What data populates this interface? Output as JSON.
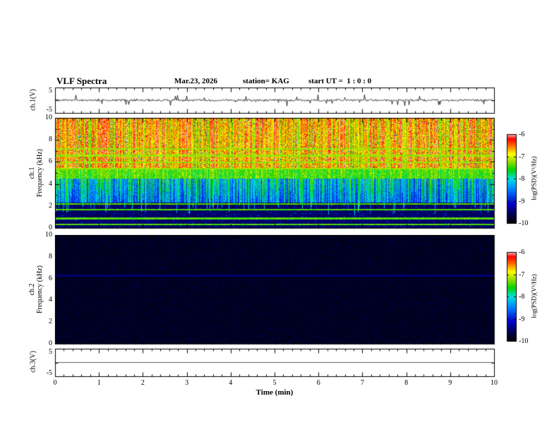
{
  "header": {
    "title": "VLF Spectra",
    "date": "Mar.23, 2026",
    "station": "station= KAG",
    "start_ut": "start UT =  1 : 0 : 0"
  },
  "xaxis": {
    "label": "Time (min)",
    "ticks": [
      0,
      1,
      2,
      3,
      4,
      5,
      6,
      7,
      8,
      9,
      10
    ],
    "range_min": [
      0,
      10
    ],
    "minor_step_min": 0.2
  },
  "colors": {
    "background": "#ffffff",
    "frame": "#000000",
    "trace": "#000000",
    "colormap": [
      {
        "v": 0.0,
        "color": "#000000"
      },
      {
        "v": 0.1,
        "color": "#00004d"
      },
      {
        "v": 0.22,
        "color": "#0000cc"
      },
      {
        "v": 0.38,
        "color": "#0080ff"
      },
      {
        "v": 0.5,
        "color": "#00e0e0"
      },
      {
        "v": 0.6,
        "color": "#00d400"
      },
      {
        "v": 0.7,
        "color": "#a0e000"
      },
      {
        "v": 0.78,
        "color": "#ffff00"
      },
      {
        "v": 0.88,
        "color": "#ff6000"
      },
      {
        "v": 0.95,
        "color": "#ff0000"
      },
      {
        "v": 1.0,
        "color": "#ffb4b4"
      }
    ]
  },
  "chart_data": [
    {
      "type": "line",
      "panel": "ch1-waveform",
      "ylabel": "ch.1(V)",
      "ylim": [
        -5,
        5
      ],
      "yticks": [
        5,
        -5
      ],
      "description": "Noisy voltage trace fluctuating near 0 V with small spikes",
      "mean_v": 0,
      "noise_amplitude_v": 0.4,
      "spike_amplitude_v": 1.5
    },
    {
      "type": "heatmap",
      "panel": "ch1-spectrogram",
      "ylabel_lines": [
        "ch.1",
        "Frequency (kHz)"
      ],
      "ylim_khz": [
        0,
        10
      ],
      "yticks": [
        0,
        2,
        4,
        6,
        8,
        10
      ],
      "colorbar": {
        "label": "log(PSD)(V²/Hz)",
        "ticks": [
          -6,
          -7,
          -8,
          -9,
          -10
        ],
        "range": [
          -10,
          -6
        ]
      },
      "bands": [
        {
          "f_khz": [
            5.5,
            10
          ],
          "psd": -6.4,
          "note": "intense red/orange band with vertical striations"
        },
        {
          "f_khz": [
            4.5,
            5.5
          ],
          "psd": -7.0,
          "note": "yellow-green transition band"
        },
        {
          "f_khz": [
            2.4,
            4.5
          ],
          "psd": -7.8,
          "note": "green/cyan vertical streaks over blue"
        },
        {
          "f_khz": [
            0,
            2.4
          ],
          "psd": -9.2,
          "note": "dark blue to black with speckle"
        }
      ],
      "horizontal_lines_khz": [
        7.2,
        6.6,
        6.0,
        5.4,
        2.2,
        1.7,
        0.9,
        0.35
      ],
      "vertical_streaks": {
        "density_per_min": 18,
        "min_f_khz": 1.2
      }
    },
    {
      "type": "heatmap",
      "panel": "ch2-spectrogram",
      "ylabel_lines": [
        "ch.2",
        "Frequency (kHz)"
      ],
      "ylim_khz": [
        0,
        10
      ],
      "yticks": [
        0,
        2,
        4,
        6,
        8,
        10
      ],
      "colorbar": {
        "label": "log(PSD)(V²/Hz)",
        "ticks": [
          -6,
          -7,
          -8,
          -9,
          -10
        ],
        "range": [
          -10,
          -6
        ]
      },
      "bands": [
        {
          "f_khz": [
            0,
            10
          ],
          "psd": -9.9,
          "note": "near-black panel with faint dark-blue speckle"
        }
      ],
      "horizontal_lines_khz": [
        6.3
      ],
      "vertical_streaks": {
        "density_per_min": 0,
        "min_f_khz": 0
      }
    },
    {
      "type": "line",
      "panel": "ch3-waveform",
      "ylabel": "ch.3(V)",
      "ylim": [
        -5,
        5
      ],
      "yticks": [
        5,
        -5
      ],
      "description": "Flat trace at 0 V",
      "mean_v": 0,
      "noise_amplitude_v": 0,
      "spike_amplitude_v": 0
    }
  ]
}
